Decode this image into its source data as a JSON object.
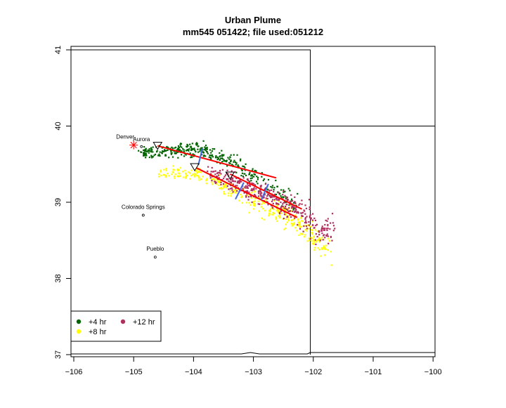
{
  "chart_data": {
    "type": "scatter",
    "title": "Urban Plume",
    "subtitle": "mm545 051422; file used:051212",
    "xlabel": "",
    "ylabel": "",
    "xlim": [
      -106,
      -100
    ],
    "ylim": [
      37,
      41
    ],
    "x_ticks": [
      -106,
      -105,
      -104,
      -103,
      -102,
      -101,
      -100
    ],
    "x_tick_labels": [
      "−106",
      "−105",
      "−104",
      "−103",
      "−102",
      "−101",
      "−100"
    ],
    "y_ticks": [
      37,
      38,
      39,
      40,
      41
    ],
    "y_tick_labels": [
      "37",
      "38",
      "39",
      "40",
      "41"
    ],
    "grid": false,
    "legend_position": "bottom-left",
    "legend": [
      {
        "label": "+4 hr",
        "color": "#006400"
      },
      {
        "label": "+12 hr",
        "color": "#b03060"
      },
      {
        "label": "+8 hr",
        "color": "#ffff00"
      }
    ],
    "series": [
      {
        "name": "+4 hr",
        "color": "#006400",
        "count": 380,
        "spread": 0.06,
        "path": [
          [
            -104.85,
            39.65
          ],
          [
            -104.3,
            39.68
          ],
          [
            -103.9,
            39.7
          ],
          [
            -103.4,
            39.55
          ],
          [
            -102.8,
            39.22
          ],
          [
            -102.3,
            38.95
          ]
        ]
      },
      {
        "name": "+8 hr",
        "color": "#ffff00",
        "count": 360,
        "spread": 0.07,
        "path": [
          [
            -104.55,
            39.4
          ],
          [
            -103.9,
            39.38
          ],
          [
            -103.3,
            39.15
          ],
          [
            -102.7,
            38.92
          ],
          [
            -102.2,
            38.7
          ],
          [
            -101.75,
            38.35
          ]
        ]
      },
      {
        "name": "+12 hr",
        "color": "#b03060",
        "count": 400,
        "spread": 0.08,
        "path": [
          [
            -103.7,
            39.38
          ],
          [
            -103.2,
            39.22
          ],
          [
            -102.7,
            39.05
          ],
          [
            -102.3,
            38.88
          ],
          [
            -101.7,
            38.6
          ]
        ]
      }
    ],
    "trajectories": [
      {
        "color": "#ff0000",
        "from": [
          -104.6,
          39.74
        ],
        "to": [
          -102.62,
          39.32
        ]
      },
      {
        "color": "#ff0000",
        "from": [
          -103.95,
          39.45
        ],
        "to": [
          -102.27,
          38.8
        ]
      },
      {
        "color": "#ff0000",
        "from": [
          -103.39,
          39.37
        ],
        "to": [
          -102.19,
          38.91
        ]
      }
    ],
    "cross_sections": [
      {
        "color": "#4169e1",
        "from": [
          -103.85,
          39.71
        ],
        "to": [
          -103.92,
          39.49
        ]
      },
      {
        "color": "#4169e1",
        "from": [
          -103.16,
          39.26
        ],
        "to": [
          -103.3,
          39.04
        ]
      },
      {
        "color": "#4169e1",
        "from": [
          -102.75,
          39.24
        ],
        "to": [
          -102.87,
          39.03
        ]
      }
    ],
    "release_points": [
      [
        -104.6,
        39.75
      ],
      [
        -103.98,
        39.47
      ],
      [
        -103.39,
        39.36
      ]
    ],
    "source": {
      "name": "Denver",
      "lon": -105.0,
      "lat": 39.75,
      "color": "#ff0000"
    },
    "cities": [
      {
        "name": "Denver",
        "lon": -105.0,
        "lat": 39.75,
        "label_dx": -12,
        "label_dy": -9,
        "marker": false
      },
      {
        "name": "Aurora",
        "lon": -104.87,
        "lat": 39.73,
        "label_dx": 0,
        "label_dy": -8,
        "marker": true
      },
      {
        "name": "Colorado Springs",
        "lon": -104.84,
        "lat": 38.83,
        "label_dx": 0,
        "label_dy": -9,
        "marker": true
      },
      {
        "name": "Pueblo",
        "lon": -104.64,
        "lat": 38.28,
        "label_dx": 0,
        "label_dy": -9,
        "marker": true
      }
    ]
  }
}
